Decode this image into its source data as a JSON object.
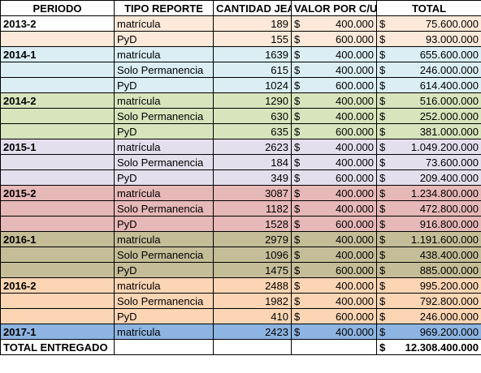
{
  "header": [
    "PERIODO",
    "TIPO REPORTE",
    "CANTIDAD JEA",
    "VALOR POR C/U",
    "TOTAL"
  ],
  "currency": "$",
  "groups": [
    {
      "period": "2013-2",
      "color": "#fde9d9",
      "rows": [
        {
          "tipo": "matrícula",
          "cantidad": "189",
          "valor": "400.000",
          "total": "75.600.000"
        },
        {
          "tipo": "PyD",
          "cantidad": "155",
          "valor": "600.000",
          "total": "93.000.000"
        }
      ]
    },
    {
      "period": "2014-1",
      "color": "#daeef3",
      "rows": [
        {
          "tipo": "matrícula",
          "cantidad": "1639",
          "valor": "400.000",
          "total": "655.600.000"
        },
        {
          "tipo": "Solo Permanencia",
          "cantidad": "615",
          "valor": "400.000",
          "total": "246.000.000"
        },
        {
          "tipo": "PyD",
          "cantidad": "1024",
          "valor": "600.000",
          "total": "614.400.000"
        }
      ]
    },
    {
      "period": "2014-2",
      "color": "#d8e4bc",
      "rows": [
        {
          "tipo": "matrícula",
          "cantidad": "1290",
          "valor": "400.000",
          "total": "516.000.000"
        },
        {
          "tipo": "Solo Permanencia",
          "cantidad": "630",
          "valor": "400.000",
          "total": "252.000.000"
        },
        {
          "tipo": "PyD",
          "cantidad": "635",
          "valor": "600.000",
          "total": "381.000.000"
        }
      ]
    },
    {
      "period": "2015-1",
      "color": "#e4dfec",
      "rows": [
        {
          "tipo": "matrícula",
          "cantidad": "2623",
          "valor": "400.000",
          "total": "1.049.200.000"
        },
        {
          "tipo": "Solo Permanencia",
          "cantidad": "184",
          "valor": "400.000",
          "total": "73.600.000"
        },
        {
          "tipo": "PyD",
          "cantidad": "349",
          "valor": "600.000",
          "total": "209.400.000"
        }
      ]
    },
    {
      "period": "2015-2",
      "color": "#e6b8b7",
      "rows": [
        {
          "tipo": "matrícula",
          "cantidad": "3087",
          "valor": "400.000",
          "total": "1.234.800.000"
        },
        {
          "tipo": "Solo Permanencia",
          "cantidad": "1182",
          "valor": "400.000",
          "total": "472.800.000"
        },
        {
          "tipo": "PyD",
          "cantidad": "1528",
          "valor": "600.000",
          "total": "916.800.000"
        }
      ]
    },
    {
      "period": "2016-1",
      "color": "#c4bd97",
      "rows": [
        {
          "tipo": "matrícula",
          "cantidad": "2979",
          "valor": "400.000",
          "total": "1.191.600.000"
        },
        {
          "tipo": "Solo Permanencia",
          "cantidad": "1096",
          "valor": "400.000",
          "total": "438.400.000"
        },
        {
          "tipo": "PyD",
          "cantidad": "1475",
          "valor": "600.000",
          "total": "885.000.000"
        }
      ]
    },
    {
      "period": "2016-2",
      "color": "#fcd5b4",
      "rows": [
        {
          "tipo": "matrícula",
          "cantidad": "2488",
          "valor": "400.000",
          "total": "995.200.000"
        },
        {
          "tipo": "Solo Permanencia",
          "cantidad": "1982",
          "valor": "400.000",
          "total": "792.800.000"
        },
        {
          "tipo": "PyD",
          "cantidad": "410",
          "valor": "600.000",
          "total": "246.000.000"
        }
      ]
    },
    {
      "period": "2017-1",
      "color": "#8db4e2",
      "rows": [
        {
          "tipo": "matrícula",
          "cantidad": "2423",
          "valor": "400.000",
          "total": "969.200.000"
        }
      ]
    }
  ],
  "footer": {
    "label": "TOTAL ENTREGADO",
    "total": "12.308.400.000"
  }
}
